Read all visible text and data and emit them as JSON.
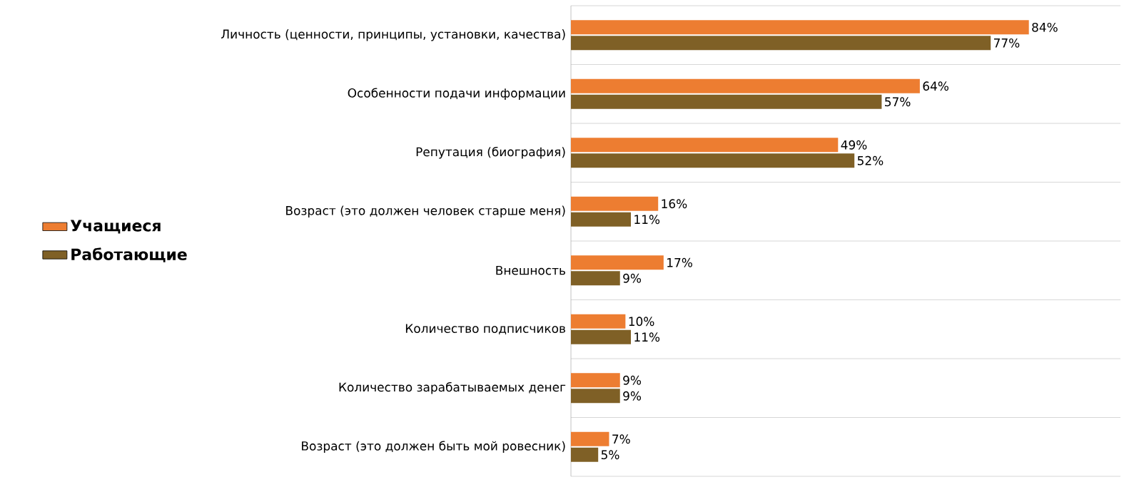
{
  "chart_data": {
    "type": "bar",
    "orientation": "horizontal",
    "categories": [
      "Личность (ценности, принципы, установки, качества)",
      "Особенности подачи информации",
      "Репутация (биография)",
      "Возраст (это должен человек старше меня)",
      "Внешность",
      "Количество подписчиков",
      "Количество зарабатываемых денег",
      "Возраст (это должен быть мой ровесник)"
    ],
    "series": [
      {
        "name": "Учащиеся",
        "color": "#ed7d31",
        "values": [
          84,
          64,
          49,
          16,
          17,
          10,
          9,
          7
        ],
        "value_labels": [
          "84%",
          "64%",
          "49%",
          "16%",
          "17%",
          "10%",
          "9%",
          "7%"
        ]
      },
      {
        "name": "Работающие",
        "color": "#7f6026",
        "values": [
          77,
          57,
          52,
          11,
          9,
          11,
          9,
          5
        ],
        "value_labels": [
          "77%",
          "57%",
          "52%",
          "11%",
          "9%",
          "11%",
          "9%",
          "5%"
        ]
      }
    ],
    "grid": "y",
    "legend": "left"
  }
}
